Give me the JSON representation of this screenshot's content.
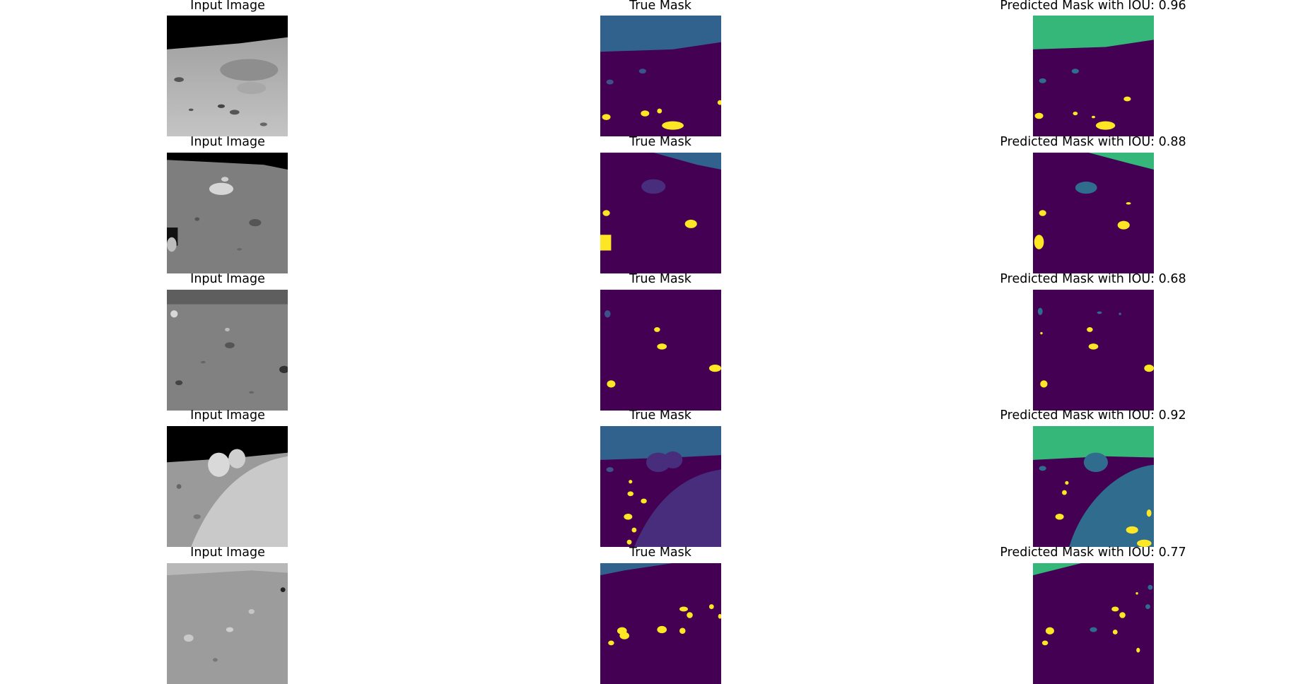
{
  "colors": {
    "background": "#440154",
    "sky_true": "#31618d",
    "sky_pred": "#35b779",
    "big_rock": "#2f6c8e",
    "small_rock": "#3b528b",
    "big_rock_true": "#472d7b",
    "crater": "#fde725"
  },
  "rows": [
    {
      "input_title": "Input Image",
      "true_title": "True Mask",
      "pred_title": "Predicted Mask with IOU: 0.96",
      "iou": 0.96
    },
    {
      "input_title": "Input Image",
      "true_title": "True Mask",
      "pred_title": "Predicted Mask with IOU: 0.88",
      "iou": 0.88
    },
    {
      "input_title": "Input Image",
      "true_title": "True Mask",
      "pred_title": "Predicted Mask with IOU: 0.68",
      "iou": 0.68
    },
    {
      "input_title": "Input Image",
      "true_title": "True Mask",
      "pred_title": "Predicted Mask with IOU: 0.92",
      "iou": 0.92
    },
    {
      "input_title": "Input Image",
      "true_title": "True Mask",
      "pred_title": "Predicted Mask with IOU: 0.77",
      "iou": 0.77
    }
  ]
}
